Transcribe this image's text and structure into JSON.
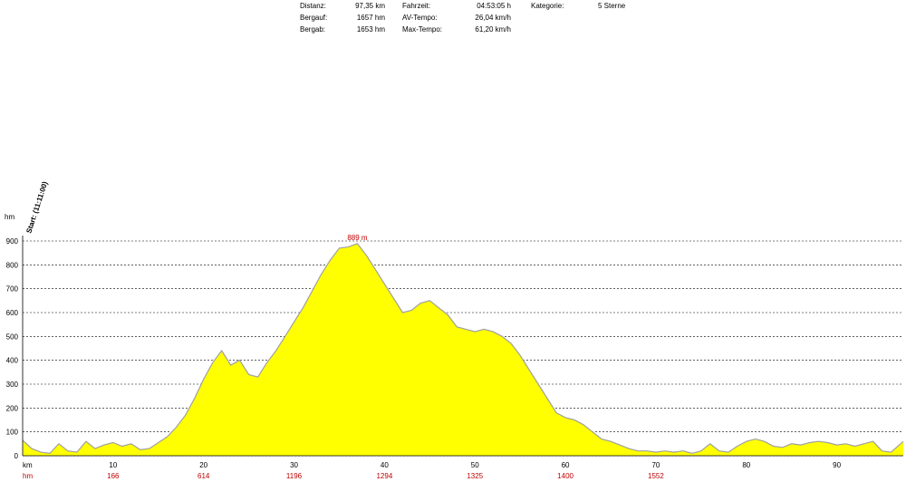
{
  "stats": {
    "distanz_label": "Distanz:",
    "distanz_value": "97,35 km",
    "bergauf_label": "Bergauf:",
    "bergauf_value": "1657 hm",
    "bergab_label": "Bergab:",
    "bergab_value": "1653 hm",
    "fahrzeit_label": "Fahrzeit:",
    "fahrzeit_value": "04:53:05 h",
    "avtempo_label": "AV-Tempo:",
    "avtempo_value": "26,04 km/h",
    "maxtempo_label": "Max-Tempo:",
    "maxtempo_value": "61,20 km/h",
    "kategorie_label": "Kategorie:",
    "kategorie_value": "5 Sterne"
  },
  "chart_data": {
    "type": "area",
    "ylabel": "hm",
    "xlabel": "km",
    "hm_row_label": "hm",
    "start_label": "Start: (11:11:00)",
    "peak_label": "889 m",
    "ylim": [
      0,
      900
    ],
    "xlim": [
      0,
      97.35
    ],
    "yticks": [
      0,
      100,
      200,
      300,
      400,
      500,
      600,
      700,
      800,
      900
    ],
    "xticks": [
      10,
      20,
      30,
      40,
      50,
      60,
      70,
      80,
      90
    ],
    "grid": true,
    "fill_color": "#ffff00",
    "line_color": "#a0a0a0",
    "hm_markers": [
      {
        "km": 10,
        "label": "166"
      },
      {
        "km": 20,
        "label": "614"
      },
      {
        "km": 30,
        "label": "1196"
      },
      {
        "km": 40,
        "label": "1294"
      },
      {
        "km": 50,
        "label": "1325"
      },
      {
        "km": 60,
        "label": "1400"
      },
      {
        "km": 70,
        "label": "1552"
      }
    ],
    "x": [
      0,
      1,
      2,
      3,
      4,
      5,
      6,
      7,
      8,
      9,
      10,
      11,
      12,
      13,
      14,
      15,
      16,
      17,
      18,
      19,
      20,
      21,
      22,
      23,
      24,
      25,
      26,
      27,
      28,
      29,
      30,
      31,
      32,
      33,
      34,
      35,
      36,
      37,
      38,
      39,
      40,
      41,
      42,
      43,
      44,
      45,
      46,
      47,
      48,
      49,
      50,
      51,
      52,
      53,
      54,
      55,
      56,
      57,
      58,
      59,
      60,
      61,
      62,
      63,
      64,
      65,
      66,
      67,
      68,
      69,
      70,
      71,
      72,
      73,
      74,
      75,
      76,
      77,
      78,
      79,
      80,
      81,
      82,
      83,
      84,
      85,
      86,
      87,
      88,
      89,
      90,
      91,
      92,
      93,
      94,
      95,
      96,
      97.35
    ],
    "values": [
      65,
      30,
      15,
      10,
      50,
      20,
      15,
      60,
      30,
      45,
      55,
      40,
      50,
      25,
      30,
      55,
      80,
      120,
      170,
      240,
      320,
      390,
      440,
      380,
      400,
      340,
      330,
      390,
      440,
      500,
      560,
      620,
      690,
      760,
      820,
      870,
      875,
      889,
      840,
      780,
      720,
      660,
      600,
      610,
      640,
      650,
      620,
      590,
      540,
      530,
      520,
      530,
      520,
      500,
      470,
      420,
      360,
      300,
      240,
      180,
      160,
      150,
      130,
      100,
      70,
      60,
      45,
      30,
      20,
      20,
      15,
      20,
      15,
      20,
      10,
      20,
      50,
      20,
      15,
      40,
      60,
      70,
      60,
      40,
      35,
      50,
      45,
      55,
      60,
      55,
      45,
      50,
      40,
      50,
      60,
      20,
      15,
      60
    ]
  }
}
